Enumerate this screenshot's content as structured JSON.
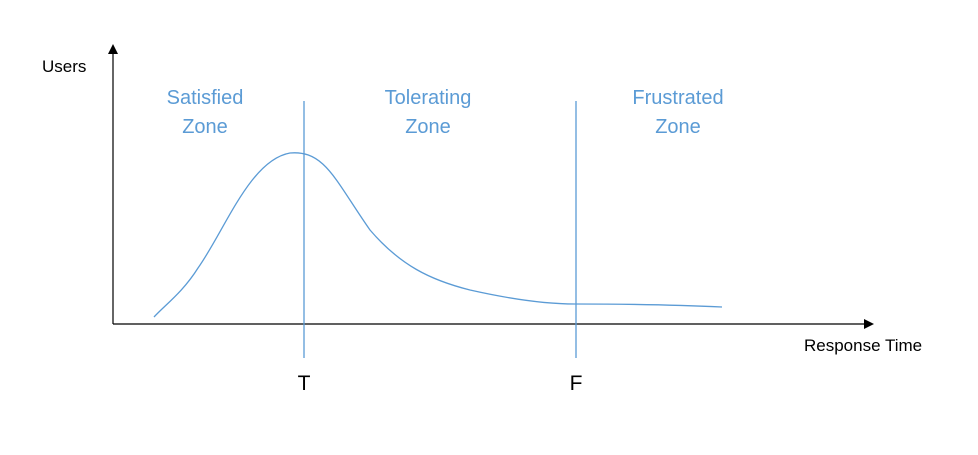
{
  "axes": {
    "y_label": "Users",
    "x_label": "Response Time"
  },
  "zones": [
    {
      "line1": "Satisfied",
      "line2": "Zone"
    },
    {
      "line1": "Tolerating",
      "line2": "Zone"
    },
    {
      "line1": "Frustrated",
      "line2": "Zone"
    }
  ],
  "thresholds": {
    "t_label": "T",
    "f_label": "F"
  },
  "colors": {
    "accent": "#5B9BD5",
    "axis": "#000000"
  }
}
